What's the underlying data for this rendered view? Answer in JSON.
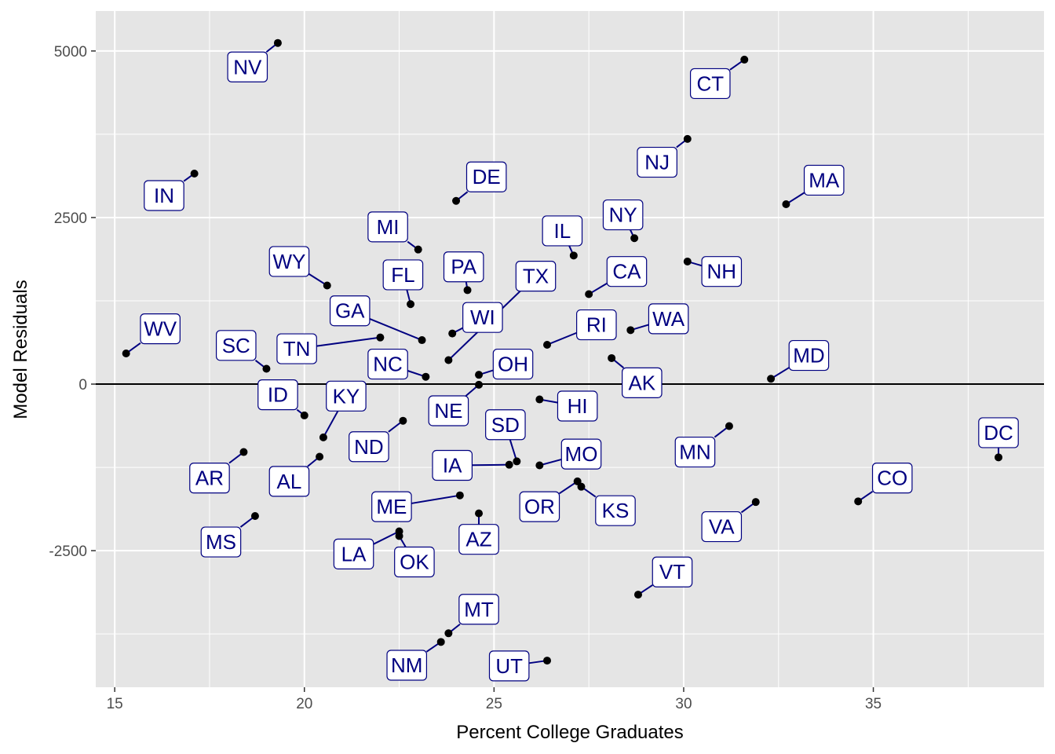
{
  "chart_data": {
    "type": "scatter",
    "title": "",
    "xlabel": "Percent College Graduates",
    "ylabel": "Model Residuals",
    "xlim": [
      14.5,
      39.5
    ],
    "ylim": [
      -4550,
      5600
    ],
    "x_ticks": [
      15,
      20,
      25,
      30,
      35
    ],
    "y_ticks": [
      5000,
      2500,
      0,
      -2500
    ],
    "y_tick_labels": [
      "5000",
      "2500",
      "0",
      "-2500"
    ],
    "x_tick_labels": [
      "15",
      "20",
      "25",
      "30",
      "35"
    ],
    "hline": 0,
    "grid": true,
    "legend": "none",
    "colors": {
      "panel": "#e5e5e5",
      "grid": "#ffffff",
      "point": "#000000",
      "label_text": "#000080",
      "label_border": "#000080",
      "label_fill": "#ffffff",
      "zero_line": "#000000"
    },
    "points": [
      {
        "label": "NV",
        "x": 19.3,
        "y": 5120,
        "lx": 18.5,
        "ly": 4760
      },
      {
        "label": "CT",
        "x": 31.6,
        "y": 4870,
        "lx": 30.7,
        "ly": 4510
      },
      {
        "label": "NJ",
        "x": 30.1,
        "y": 3680,
        "lx": 29.3,
        "ly": 3330
      },
      {
        "label": "IN",
        "x": 17.1,
        "y": 3160,
        "lx": 16.3,
        "ly": 2830
      },
      {
        "label": "MA",
        "x": 32.7,
        "y": 2700,
        "lx": 33.7,
        "ly": 3060
      },
      {
        "label": "DE",
        "x": 24.0,
        "y": 2750,
        "lx": 24.8,
        "ly": 3110
      },
      {
        "label": "NY",
        "x": 28.7,
        "y": 2190,
        "lx": 28.4,
        "ly": 2540
      },
      {
        "label": "IL",
        "x": 27.1,
        "y": 1930,
        "lx": 26.8,
        "ly": 2300
      },
      {
        "label": "MI",
        "x": 23.0,
        "y": 2020,
        "lx": 22.2,
        "ly": 2360
      },
      {
        "label": "NH",
        "x": 30.1,
        "y": 1840,
        "lx": 31.0,
        "ly": 1690
      },
      {
        "label": "CA",
        "x": 27.5,
        "y": 1350,
        "lx": 28.5,
        "ly": 1690
      },
      {
        "label": "WY",
        "x": 20.6,
        "y": 1480,
        "lx": 19.6,
        "ly": 1840
      },
      {
        "label": "PA",
        "x": 24.3,
        "y": 1410,
        "lx": 24.2,
        "ly": 1760
      },
      {
        "label": "FL",
        "x": 22.8,
        "y": 1200,
        "lx": 22.6,
        "ly": 1640
      },
      {
        "label": "TX",
        "x": 23.8,
        "y": 360,
        "lx": 26.1,
        "ly": 1620
      },
      {
        "label": "WA",
        "x": 28.6,
        "y": 810,
        "lx": 29.6,
        "ly": 980
      },
      {
        "label": "GA",
        "x": 23.1,
        "y": 660,
        "lx": 21.2,
        "ly": 1100
      },
      {
        "label": "WI",
        "x": 23.9,
        "y": 760,
        "lx": 24.7,
        "ly": 1000
      },
      {
        "label": "RI",
        "x": 26.4,
        "y": 590,
        "lx": 27.7,
        "ly": 890
      },
      {
        "label": "WV",
        "x": 15.3,
        "y": 460,
        "lx": 16.2,
        "ly": 830
      },
      {
        "label": "TN",
        "x": 22.0,
        "y": 700,
        "lx": 19.8,
        "ly": 530
      },
      {
        "label": "SC",
        "x": 19.0,
        "y": 230,
        "lx": 18.2,
        "ly": 580
      },
      {
        "label": "NC",
        "x": 23.2,
        "y": 110,
        "lx": 22.2,
        "ly": 300
      },
      {
        "label": "OH",
        "x": 24.6,
        "y": 140,
        "lx": 25.5,
        "ly": 300
      },
      {
        "label": "AK",
        "x": 28.1,
        "y": 390,
        "lx": 28.9,
        "ly": 20
      },
      {
        "label": "MD",
        "x": 32.3,
        "y": 80,
        "lx": 33.3,
        "ly": 430
      },
      {
        "label": "NE",
        "x": 24.6,
        "y": -10,
        "lx": 23.8,
        "ly": -400
      },
      {
        "label": "HI",
        "x": 26.2,
        "y": -230,
        "lx": 27.2,
        "ly": -330
      },
      {
        "label": "ID",
        "x": 20.0,
        "y": -470,
        "lx": 19.3,
        "ly": -160
      },
      {
        "label": "KY",
        "x": 20.5,
        "y": -800,
        "lx": 21.1,
        "ly": -180
      },
      {
        "label": "ND",
        "x": 22.6,
        "y": -550,
        "lx": 21.7,
        "ly": -940
      },
      {
        "label": "MN",
        "x": 31.2,
        "y": -630,
        "lx": 30.3,
        "ly": -1020
      },
      {
        "label": "SD",
        "x": 25.6,
        "y": -1160,
        "lx": 25.3,
        "ly": -610
      },
      {
        "label": "DC",
        "x": 38.3,
        "y": -1100,
        "lx": 38.3,
        "ly": -730
      },
      {
        "label": "MO",
        "x": 26.2,
        "y": -1220,
        "lx": 27.3,
        "ly": -1050
      },
      {
        "label": "IA",
        "x": 25.4,
        "y": -1210,
        "lx": 23.9,
        "ly": -1220
      },
      {
        "label": "AR",
        "x": 18.4,
        "y": -1020,
        "lx": 17.5,
        "ly": -1410
      },
      {
        "label": "AL",
        "x": 20.4,
        "y": -1090,
        "lx": 19.6,
        "ly": -1460
      },
      {
        "label": "CO",
        "x": 34.6,
        "y": -1760,
        "lx": 35.5,
        "ly": -1410
      },
      {
        "label": "OR",
        "x": 27.2,
        "y": -1460,
        "lx": 26.2,
        "ly": -1840
      },
      {
        "label": "KS",
        "x": 27.3,
        "y": -1540,
        "lx": 28.2,
        "ly": -1900
      },
      {
        "label": "ME",
        "x": 24.1,
        "y": -1670,
        "lx": 22.3,
        "ly": -1840
      },
      {
        "label": "VA",
        "x": 31.9,
        "y": -1770,
        "lx": 31.0,
        "ly": -2140
      },
      {
        "label": "AZ",
        "x": 24.6,
        "y": -1940,
        "lx": 24.6,
        "ly": -2330
      },
      {
        "label": "MS",
        "x": 18.7,
        "y": -1980,
        "lx": 17.8,
        "ly": -2370
      },
      {
        "label": "LA",
        "x": 22.5,
        "y": -2210,
        "lx": 21.3,
        "ly": -2550
      },
      {
        "label": "OK",
        "x": 22.5,
        "y": -2280,
        "lx": 22.9,
        "ly": -2670
      },
      {
        "label": "VT",
        "x": 28.8,
        "y": -3160,
        "lx": 29.7,
        "ly": -2820
      },
      {
        "label": "MT",
        "x": 23.8,
        "y": -3740,
        "lx": 24.6,
        "ly": -3380
      },
      {
        "label": "NM",
        "x": 23.6,
        "y": -3870,
        "lx": 22.7,
        "ly": -4220
      },
      {
        "label": "UT",
        "x": 26.4,
        "y": -4150,
        "lx": 25.4,
        "ly": -4230
      }
    ]
  }
}
